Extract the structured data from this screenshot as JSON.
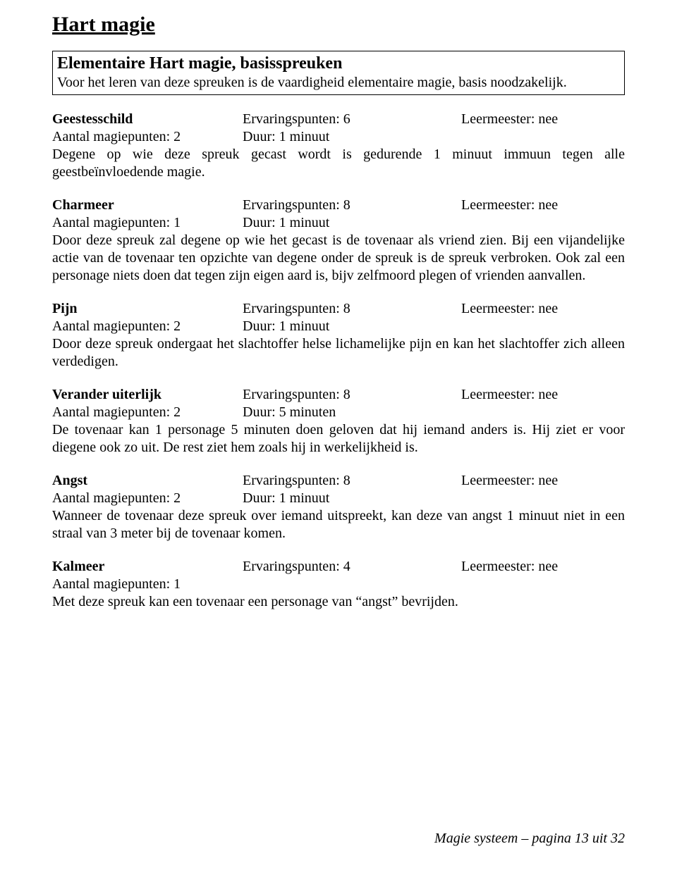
{
  "page_title": "Hart magie",
  "intro": {
    "title": "Elementaire Hart magie, basisspreuken",
    "text": "Voor het leren van deze spreuken is de vaardigheid elementaire magie, basis noodzakelijk."
  },
  "spells": [
    {
      "name": "Geestesschild",
      "xp": "Ervaringspunten: 6",
      "leer": "Leermeester: nee",
      "mp": "Aantal magiepunten: 2",
      "duur": "Duur: 1 minuut",
      "desc": "Degene op wie deze spreuk gecast wordt is gedurende 1 minuut immuun tegen alle geestbeïnvloedende magie."
    },
    {
      "name": "Charmeer",
      "xp": "Ervaringspunten: 8",
      "leer": "Leermeester: nee",
      "mp": "Aantal magiepunten: 1",
      "duur": "Duur: 1 minuut",
      "desc": "Door deze spreuk zal degene op wie het gecast is de tovenaar als vriend zien. Bij een vijandelijke actie van de tovenaar ten opzichte van degene onder de spreuk is de spreuk verbroken. Ook zal een personage niets doen dat tegen zijn eigen aard is, bijv zelfmoord plegen of vrienden aanvallen."
    },
    {
      "name": "Pijn",
      "xp": "Ervaringspunten: 8",
      "leer": "Leermeester: nee",
      "mp": "Aantal magiepunten: 2",
      "duur": "Duur: 1 minuut",
      "desc": "Door deze spreuk ondergaat het slachtoffer helse lichamelijke pijn en kan het slachtoffer zich alleen verdedigen."
    },
    {
      "name": "Verander uiterlijk",
      "xp": "Ervaringspunten: 8",
      "leer": "Leermeester: nee",
      "mp": "Aantal magiepunten: 2",
      "duur": "Duur: 5 minuten",
      "desc": "De tovenaar kan 1 personage 5 minuten doen geloven dat hij iemand anders is. Hij ziet er voor diegene ook zo uit. De rest ziet hem zoals hij in werkelijkheid is."
    },
    {
      "name": "Angst",
      "xp": "Ervaringspunten: 8",
      "leer": "Leermeester: nee",
      "mp": "Aantal magiepunten: 2",
      "duur": "Duur: 1 minuut",
      "desc": "Wanneer de tovenaar deze spreuk over iemand uitspreekt, kan deze van angst 1 minuut niet in een straal van 3 meter bij de tovenaar komen."
    },
    {
      "name": "Kalmeer",
      "xp": "Ervaringspunten: 4",
      "leer": "Leermeester: nee",
      "mp": "Aantal magiepunten: 1",
      "duur": "",
      "desc": "Met deze spreuk kan een tovenaar een personage van “angst” bevrijden."
    }
  ],
  "footer": "Magie systeem – pagina 13 uit 32"
}
